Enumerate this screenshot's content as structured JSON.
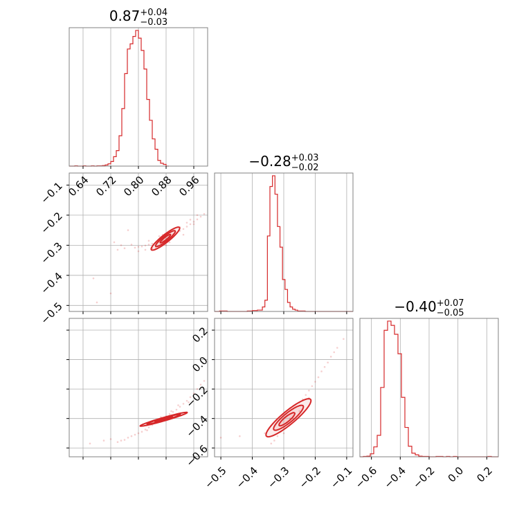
{
  "figure": {
    "line_color": "#d62728",
    "fill_color": "#f4c6c6",
    "grid_color": "#b0b0b0",
    "frame_color": "#808080"
  },
  "chart_data": [
    {
      "type": "histogram",
      "panel": "p00",
      "title": {
        "value": "0.87",
        "plus": "+0.04",
        "minus": "−0.03"
      },
      "xlim": [
        0.6,
        1.0
      ],
      "xticks": [
        0.64,
        0.72,
        0.8,
        0.88,
        0.96
      ],
      "x_tick_labels": [
        "0.64",
        "0.72",
        "0.80",
        "0.88",
        "0.96"
      ],
      "bin_width": 0.008,
      "bin_start": 0.6,
      "counts": [
        0,
        0,
        1,
        0,
        0,
        1,
        0,
        0,
        1,
        0,
        1,
        1,
        2,
        4,
        8,
        16,
        33,
        54,
        106,
        201,
        323,
        409,
        427,
        453,
        474,
        447,
        404,
        339,
        233,
        160,
        95,
        59,
        20,
        10,
        6,
        0
      ],
      "grid": true
    },
    {
      "type": "histogram",
      "panel": "p11",
      "title": {
        "value": "−0.28",
        "plus": "+0.03",
        "minus": "−0.02"
      },
      "xlim": [
        -0.52,
        -0.08
      ],
      "xticks": [
        -0.5,
        -0.4,
        -0.3,
        -0.2,
        -0.1
      ],
      "bin_width": 0.008,
      "bin_start": -0.52,
      "counts": [
        0,
        0,
        1,
        1,
        1,
        0,
        0,
        0,
        0,
        0,
        0,
        0,
        0,
        1,
        1,
        2,
        2,
        3,
        3,
        10,
        25,
        168,
        278,
        302,
        261,
        189,
        143,
        71,
        49,
        20,
        10,
        5,
        3,
        1,
        1,
        1,
        0,
        0,
        0,
        0,
        0,
        0,
        0,
        0,
        0,
        0,
        0,
        0,
        0,
        0,
        0,
        0,
        0,
        0,
        0
      ],
      "grid": true
    },
    {
      "type": "histogram",
      "panel": "p22",
      "title": {
        "value": "−0.40",
        "plus": "+0.07",
        "minus": "−0.05"
      },
      "xlim": [
        -0.68,
        0.28
      ],
      "xticks": [
        -0.6,
        -0.4,
        -0.2,
        0.0,
        0.2
      ],
      "x_tick_labels": [
        "−0.6",
        "−0.4",
        "−0.2",
        "0.0",
        "0.2"
      ],
      "bin_width": 0.024,
      "bin_start": -0.68,
      "counts": [
        0,
        1,
        2,
        9,
        30,
        65,
        210,
        383,
        411,
        398,
        371,
        312,
        180,
        89,
        32,
        11,
        6,
        2,
        1,
        1,
        0,
        0,
        1,
        1,
        0,
        1,
        0,
        1,
        0,
        0,
        0,
        0,
        0,
        0,
        0,
        0,
        0,
        1,
        0,
        0
      ],
      "grid": true
    },
    {
      "type": "scatter",
      "panel": "p10",
      "xlim": [
        0.6,
        1.0
      ],
      "ylim": [
        -0.52,
        -0.06
      ],
      "xticks": [
        0.64,
        0.72,
        0.8,
        0.88,
        0.96
      ],
      "yticks": [
        -0.5,
        -0.4,
        -0.3,
        -0.2,
        -0.1
      ],
      "y_tick_labels": [
        "−0.5",
        "−0.4",
        "−0.3",
        "−0.2",
        "−0.1"
      ],
      "points": [
        [
          0.9,
          -0.266
        ],
        [
          0.89,
          -0.272
        ],
        [
          0.88,
          -0.278
        ],
        [
          0.87,
          -0.283
        ],
        [
          0.86,
          -0.288
        ],
        [
          0.85,
          -0.292
        ],
        [
          0.84,
          -0.295
        ],
        [
          0.83,
          -0.298
        ],
        [
          0.82,
          -0.301
        ],
        [
          0.91,
          -0.258
        ],
        [
          0.92,
          -0.252
        ],
        [
          0.93,
          -0.246
        ],
        [
          0.94,
          -0.238
        ],
        [
          0.95,
          -0.23
        ],
        [
          0.96,
          -0.222
        ],
        [
          0.97,
          -0.214
        ],
        [
          0.98,
          -0.205
        ],
        [
          0.99,
          -0.196
        ],
        [
          0.81,
          -0.304
        ],
        [
          0.8,
          -0.305
        ],
        [
          0.79,
          -0.308
        ],
        [
          0.76,
          -0.31
        ],
        [
          0.74,
          -0.315
        ],
        [
          0.67,
          -0.41
        ],
        [
          0.68,
          -0.49
        ],
        [
          0.72,
          -0.46
        ],
        [
          0.77,
          -0.25
        ],
        [
          0.78,
          -0.298
        ],
        [
          0.85,
          -0.31
        ],
        [
          0.88,
          -0.3
        ],
        [
          0.86,
          -0.27
        ],
        [
          0.9,
          -0.25
        ],
        [
          0.83,
          -0.285
        ],
        [
          0.92,
          -0.24
        ],
        [
          0.94,
          -0.225
        ],
        [
          0.93,
          -0.265
        ],
        [
          0.87,
          -0.265
        ],
        [
          0.84,
          -0.31
        ],
        [
          0.89,
          -0.29
        ],
        [
          0.95,
          -0.215
        ],
        [
          0.82,
          -0.315
        ],
        [
          0.8,
          -0.32
        ],
        [
          0.97,
          -0.2
        ],
        [
          0.96,
          -0.23
        ],
        [
          0.75,
          -0.3
        ],
        [
          0.73,
          -0.29
        ]
      ],
      "contours": [
        {
          "level": 1,
          "cx": 0.878,
          "cy": -0.278,
          "a": 0.055,
          "b": 0.012,
          "angle": 0.745
        },
        {
          "level": 2,
          "cx": 0.878,
          "cy": -0.278,
          "a": 0.038,
          "b": 0.008,
          "angle": 0.745
        },
        {
          "level": 3,
          "cx": 0.878,
          "cy": -0.278,
          "a": 0.02,
          "b": 0.004,
          "angle": 0.745
        }
      ],
      "grid": true
    },
    {
      "type": "scatter",
      "panel": "p20",
      "xlim": [
        0.6,
        1.0
      ],
      "ylim": [
        -0.66,
        0.28
      ],
      "xticks": [
        0.64,
        0.72,
        0.8,
        0.88,
        0.96
      ],
      "yticks": [
        -0.6,
        -0.4,
        -0.2,
        0.0,
        0.2
      ],
      "points": [
        [
          0.9,
          -0.355
        ],
        [
          0.89,
          -0.37
        ],
        [
          0.88,
          -0.385
        ],
        [
          0.87,
          -0.4
        ],
        [
          0.86,
          -0.415
        ],
        [
          0.85,
          -0.43
        ],
        [
          0.84,
          -0.445
        ],
        [
          0.83,
          -0.46
        ],
        [
          0.82,
          -0.475
        ],
        [
          0.81,
          -0.49
        ],
        [
          0.8,
          -0.5
        ],
        [
          0.79,
          -0.51
        ],
        [
          0.78,
          -0.52
        ],
        [
          0.77,
          -0.53
        ],
        [
          0.76,
          -0.545
        ],
        [
          0.75,
          -0.55
        ],
        [
          0.91,
          -0.34
        ],
        [
          0.92,
          -0.32
        ],
        [
          0.93,
          -0.3
        ],
        [
          0.94,
          -0.28
        ],
        [
          0.95,
          -0.255
        ],
        [
          0.96,
          -0.23
        ],
        [
          0.97,
          -0.2
        ],
        [
          0.98,
          -0.17
        ],
        [
          0.99,
          -0.145
        ],
        [
          0.72,
          -0.54
        ],
        [
          0.7,
          -0.55
        ],
        [
          0.66,
          -0.57
        ],
        [
          0.74,
          -0.56
        ],
        [
          0.865,
          -0.39
        ],
        [
          0.895,
          -0.35
        ],
        [
          0.835,
          -0.44
        ],
        [
          0.915,
          -0.31
        ],
        [
          0.945,
          -0.29
        ],
        [
          0.885,
          -0.4
        ],
        [
          0.825,
          -0.48
        ]
      ],
      "contours": [
        {
          "level": 1,
          "cx": 0.873,
          "cy": -0.405,
          "a": 0.082,
          "b": 0.01,
          "angle": 0.6
        },
        {
          "level": 2,
          "cx": 0.873,
          "cy": -0.405,
          "a": 0.058,
          "b": 0.007,
          "angle": 0.6
        },
        {
          "level": 3,
          "cx": 0.873,
          "cy": -0.405,
          "a": 0.03,
          "b": 0.0035,
          "angle": 0.6
        }
      ],
      "grid": true
    },
    {
      "type": "scatter",
      "panel": "p21",
      "xlim": [
        -0.52,
        -0.08
      ],
      "ylim": [
        -0.66,
        0.28
      ],
      "xticks": [
        -0.5,
        -0.4,
        -0.3,
        -0.2,
        -0.1
      ],
      "yticks": [
        -0.6,
        -0.4,
        -0.2,
        0.0,
        0.2
      ],
      "x_tick_labels": [
        "−0.5",
        "−0.4",
        "−0.3",
        "−0.2",
        "−0.1"
      ],
      "y_tick_labels": [
        "−0.6",
        "−0.4",
        "−0.2",
        "0.0",
        "0.2"
      ],
      "points": [
        [
          -0.28,
          -0.4
        ],
        [
          -0.27,
          -0.36
        ],
        [
          -0.26,
          -0.32
        ],
        [
          -0.25,
          -0.29
        ],
        [
          -0.29,
          -0.43
        ],
        [
          -0.3,
          -0.46
        ],
        [
          -0.31,
          -0.49
        ],
        [
          -0.32,
          -0.52
        ],
        [
          -0.24,
          -0.27
        ],
        [
          -0.23,
          -0.24
        ],
        [
          -0.22,
          -0.21
        ],
        [
          -0.21,
          -0.18
        ],
        [
          -0.2,
          -0.15
        ],
        [
          -0.19,
          -0.12
        ],
        [
          -0.18,
          -0.08
        ],
        [
          -0.17,
          -0.05
        ],
        [
          -0.16,
          -0.02
        ],
        [
          -0.15,
          0.02
        ],
        [
          -0.14,
          0.05
        ],
        [
          -0.13,
          0.08
        ],
        [
          -0.11,
          0.14
        ],
        [
          -0.33,
          -0.55
        ],
        [
          -0.34,
          -0.57
        ],
        [
          -0.5,
          -0.53
        ],
        [
          -0.44,
          -0.52
        ],
        [
          -0.36,
          -0.5
        ],
        [
          -0.22,
          -0.26
        ],
        [
          -0.27,
          -0.4
        ],
        [
          -0.31,
          -0.4
        ],
        [
          -0.28,
          -0.33
        ],
        [
          -0.29,
          -0.38
        ],
        [
          -0.25,
          -0.35
        ],
        [
          -0.3,
          -0.5
        ]
      ],
      "contours": [
        {
          "level": 1,
          "cx": -0.285,
          "cy": -0.395,
          "a": 0.145,
          "b": 0.028,
          "angle": 1.09
        },
        {
          "level": 2,
          "cx": -0.285,
          "cy": -0.395,
          "a": 0.095,
          "b": 0.02,
          "angle": 1.09
        },
        {
          "level": 3,
          "cx": -0.29,
          "cy": -0.405,
          "a": 0.05,
          "b": 0.011,
          "angle": 1.09
        }
      ],
      "grid": true
    }
  ]
}
